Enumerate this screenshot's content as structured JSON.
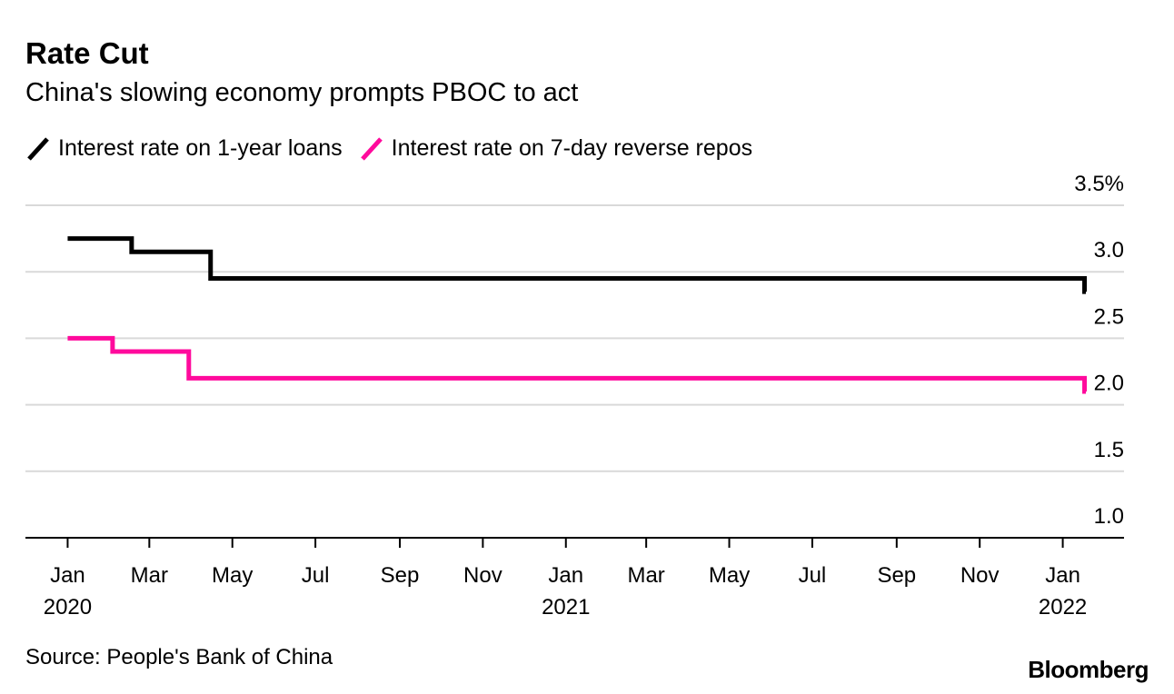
{
  "header": {
    "title": "Rate Cut",
    "subtitle": "China's slowing economy prompts PBOC to act"
  },
  "footer": {
    "source": "Source: People's Bank of China",
    "brand": "Bloomberg"
  },
  "colors": {
    "series_1": "#000000",
    "series_2": "#ff0a9c",
    "grid": "#d9d9d9",
    "axis": "#000000"
  },
  "chart_data": {
    "type": "line",
    "title": "Rate Cut",
    "subtitle": "China's slowing economy prompts PBOC to act",
    "x_range": [
      "2019-12-01",
      "2022-02-15"
    ],
    "ylim": [
      1.0,
      3.5
    ],
    "y_ticks": [
      {
        "value": 3.5,
        "label": "3.5%"
      },
      {
        "value": 3.0,
        "label": "3.0"
      },
      {
        "value": 2.5,
        "label": "2.5"
      },
      {
        "value": 2.0,
        "label": "2.0"
      },
      {
        "value": 1.5,
        "label": "1.5"
      },
      {
        "value": 1.0,
        "label": "1.0"
      }
    ],
    "x_ticks": [
      {
        "date": "2020-01-01",
        "label": "Jan",
        "year": "2020"
      },
      {
        "date": "2020-03-01",
        "label": "Mar",
        "year": ""
      },
      {
        "date": "2020-05-01",
        "label": "May",
        "year": ""
      },
      {
        "date": "2020-07-01",
        "label": "Jul",
        "year": ""
      },
      {
        "date": "2020-09-01",
        "label": "Sep",
        "year": ""
      },
      {
        "date": "2020-11-01",
        "label": "Nov",
        "year": ""
      },
      {
        "date": "2021-01-01",
        "label": "Jan",
        "year": "2021"
      },
      {
        "date": "2021-03-01",
        "label": "Mar",
        "year": ""
      },
      {
        "date": "2021-05-01",
        "label": "May",
        "year": ""
      },
      {
        "date": "2021-07-01",
        "label": "Jul",
        "year": ""
      },
      {
        "date": "2021-09-01",
        "label": "Sep",
        "year": ""
      },
      {
        "date": "2021-11-01",
        "label": "Nov",
        "year": ""
      },
      {
        "date": "2022-01-01",
        "label": "Jan",
        "year": "2022"
      }
    ],
    "grid": true,
    "series": [
      {
        "name": "Interest rate on 1-year loans",
        "color": "#000000",
        "step": true,
        "points": [
          {
            "x": "2020-01-01",
            "y": 3.25
          },
          {
            "x": "2020-02-17",
            "y": 3.15
          },
          {
            "x": "2020-04-15",
            "y": 2.95
          },
          {
            "x": "2022-01-17",
            "y": 2.85
          }
        ],
        "end_x": "2022-01-18"
      },
      {
        "name": "Interest rate on 7-day reverse repos",
        "color": "#ff0a9c",
        "step": true,
        "points": [
          {
            "x": "2020-01-01",
            "y": 2.5
          },
          {
            "x": "2020-02-03",
            "y": 2.4
          },
          {
            "x": "2020-03-30",
            "y": 2.2
          },
          {
            "x": "2022-01-17",
            "y": 2.1
          }
        ],
        "end_x": "2022-01-18"
      }
    ]
  }
}
